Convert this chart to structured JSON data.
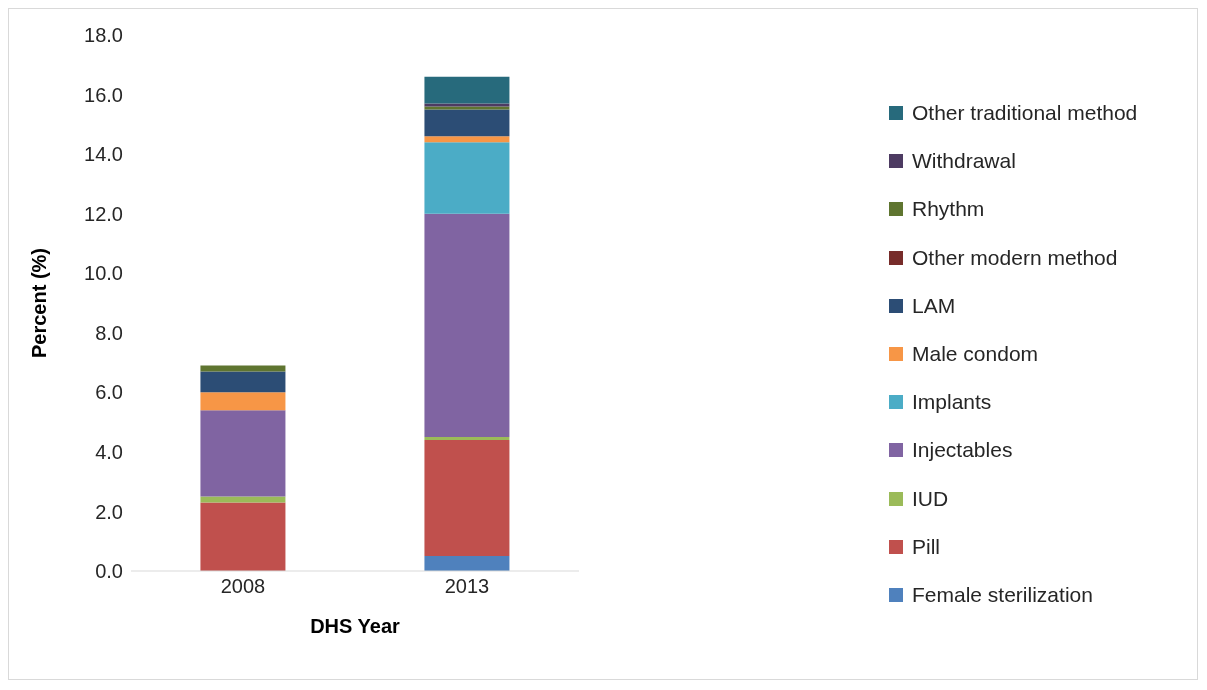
{
  "chart_data": {
    "type": "bar",
    "stacked": true,
    "xlabel": "DHS Year",
    "ylabel": "Percent (%)",
    "categories": [
      "2008",
      "2013"
    ],
    "ylim": [
      0,
      18
    ],
    "yticks": [
      {
        "value": 0,
        "label": "0.0"
      },
      {
        "value": 2,
        "label": "2.0"
      },
      {
        "value": 4,
        "label": "4.0"
      },
      {
        "value": 6,
        "label": "6.0"
      },
      {
        "value": 8,
        "label": "8.0"
      },
      {
        "value": 10,
        "label": "10.0"
      },
      {
        "value": 12,
        "label": "12.0"
      },
      {
        "value": 14,
        "label": "14.0"
      },
      {
        "value": 16,
        "label": "16.0"
      },
      {
        "value": 18,
        "label": "18.0"
      }
    ],
    "grid": false,
    "legend": "right",
    "series": [
      {
        "name": "Female sterilization",
        "color": "#4f81bd",
        "values": [
          0,
          0.5
        ]
      },
      {
        "name": "Pill",
        "color": "#c0504d",
        "values": [
          2.3,
          3.9
        ]
      },
      {
        "name": "IUD",
        "color": "#9bbb59",
        "values": [
          0.2,
          0.1
        ]
      },
      {
        "name": "Injectables",
        "color": "#8064a2",
        "values": [
          2.9,
          7.5
        ]
      },
      {
        "name": "Implants",
        "color": "#4bacc6",
        "values": [
          0,
          2.4
        ]
      },
      {
        "name": "Male condom",
        "color": "#f79646",
        "values": [
          0.6,
          0.2
        ]
      },
      {
        "name": "LAM",
        "color": "#2c4d75",
        "values": [
          0.7,
          0.9
        ]
      },
      {
        "name": "Other modern method",
        "color": "#772c2a",
        "values": [
          0,
          0
        ]
      },
      {
        "name": "Rhythm",
        "color": "#5f7530",
        "values": [
          0.2,
          0.1
        ]
      },
      {
        "name": "Withdrawal",
        "color": "#4d3b62",
        "values": [
          0,
          0.1
        ]
      },
      {
        "name": "Other traditional method",
        "color": "#276a7c",
        "values": [
          0,
          0.9
        ]
      }
    ]
  }
}
